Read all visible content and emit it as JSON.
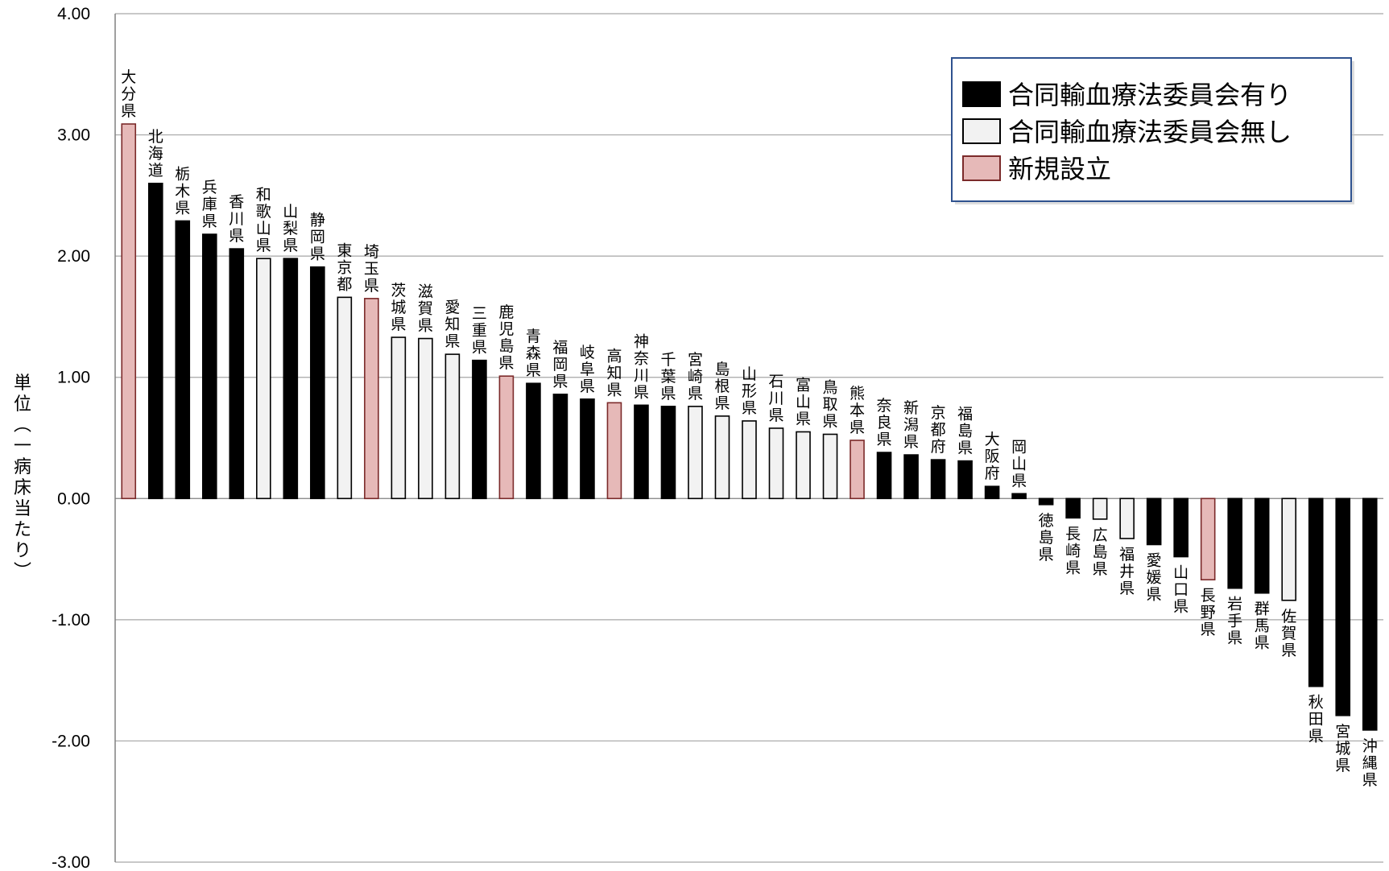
{
  "chart_data": {
    "type": "bar",
    "ylabel": "単位(一病床当たり)",
    "ylim": [
      -3,
      4
    ],
    "yticks": [
      "4.00",
      "3.00",
      "2.00",
      "1.00",
      "0.00",
      "-1.00",
      "-2.00",
      "-3.00"
    ],
    "grid": true,
    "legend_position": "top-right",
    "legend": [
      {
        "key": "yes",
        "label": "合同輸血療法委員会有り",
        "fill": "#000000",
        "stroke": "#000000"
      },
      {
        "key": "no",
        "label": "合同輸血療法委員会無し",
        "fill": "#f2f2f2",
        "stroke": "#000000"
      },
      {
        "key": "new",
        "label": "新規設立",
        "fill": "#e6b9b8",
        "stroke": "#7b2a2a"
      }
    ],
    "categories": [
      "大分県",
      "北海道",
      "栃木県",
      "兵庫県",
      "香川県",
      "和歌山県",
      "山梨県",
      "静岡県",
      "東京都",
      "埼玉県",
      "茨城県",
      "滋賀県",
      "愛知県",
      "三重県",
      "鹿児島県",
      "青森県",
      "福岡県",
      "岐阜県",
      "高知県",
      "神奈川県",
      "千葉県",
      "宮崎県",
      "島根県",
      "山形県",
      "石川県",
      "富山県",
      "鳥取県",
      "熊本県",
      "奈良県",
      "新潟県",
      "京都府",
      "福島県",
      "大阪府",
      "岡山県",
      "徳島県",
      "長崎県",
      "広島県",
      "福井県",
      "愛媛県",
      "山口県",
      "長野県",
      "岩手県",
      "群馬県",
      "佐賀県",
      "秋田県",
      "宮城県",
      "沖縄県"
    ],
    "values": [
      3.09,
      2.6,
      2.29,
      2.18,
      2.06,
      1.98,
      1.98,
      1.91,
      1.66,
      1.65,
      1.33,
      1.32,
      1.19,
      1.14,
      1.01,
      0.95,
      0.86,
      0.82,
      0.79,
      0.77,
      0.76,
      0.76,
      0.68,
      0.64,
      0.58,
      0.55,
      0.53,
      0.48,
      0.38,
      0.36,
      0.32,
      0.31,
      0.1,
      0.04,
      -0.05,
      -0.16,
      -0.17,
      -0.33,
      -0.38,
      -0.48,
      -0.67,
      -0.74,
      -0.78,
      -0.84,
      -1.55,
      -1.79,
      -1.91
    ],
    "groups": [
      "new",
      "yes",
      "yes",
      "yes",
      "yes",
      "no",
      "yes",
      "yes",
      "no",
      "new",
      "no",
      "no",
      "no",
      "yes",
      "new",
      "yes",
      "yes",
      "yes",
      "new",
      "yes",
      "yes",
      "no",
      "no",
      "no",
      "no",
      "no",
      "no",
      "new",
      "yes",
      "yes",
      "yes",
      "yes",
      "yes",
      "yes",
      "yes",
      "yes",
      "no",
      "no",
      "yes",
      "yes",
      "new",
      "yes",
      "yes",
      "no",
      "yes",
      "yes",
      "yes"
    ]
  }
}
